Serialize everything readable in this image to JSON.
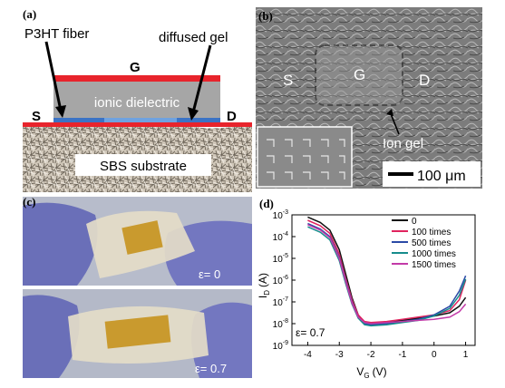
{
  "figure": {
    "panel_a": {
      "label": "(a)",
      "p3ht_label": "P3HT fiber",
      "gel_label": "diffused gel",
      "gate_label": "G",
      "dielectric_label": "ionic dielectric",
      "source_label": "S",
      "drain_label": "D",
      "substrate_label": "SBS substrate",
      "colors": {
        "electrode": "#e8242c",
        "dielectric": "#a6a6a6",
        "fiber": "#3b73c5"
      }
    },
    "panel_b": {
      "label": "(b)",
      "source_label": "S",
      "gate_label": "G",
      "drain_label": "D",
      "gel_label": "Ion gel",
      "scale_label": "100 μm"
    },
    "panel_c": {
      "label": "(c)",
      "strain_top": "ε= 0",
      "strain_bottom": "ε= 0.7"
    },
    "panel_d": {
      "label": "(d)",
      "annotation": "ε= 0.7"
    }
  },
  "chart_data": {
    "type": "line",
    "xlabel_main": "V",
    "xlabel_sub": "G",
    "xlabel_unit": "(V)",
    "ylabel_main": "I",
    "ylabel_sub": "D",
    "ylabel_unit": "(A)",
    "xlim": [
      -4.5,
      1.3
    ],
    "ylim_exp": [
      -9,
      -3
    ],
    "log_y": true,
    "x_ticks": [
      "-4",
      "-3",
      "-2",
      "-1",
      "0",
      "1"
    ],
    "x_tick_values": [
      -4,
      -3,
      -2,
      -1,
      0,
      1
    ],
    "y_tick_exponents": [
      -9,
      -8,
      -7,
      -6,
      -5,
      -4,
      -3
    ],
    "y_tick_base": "10",
    "legend_position": "top-right",
    "series": [
      {
        "name": "0",
        "color": "#111111",
        "x": [
          -4,
          -3.6,
          -3.3,
          -3.0,
          -2.8,
          -2.6,
          -2.4,
          -2.2,
          -2.0,
          -1.5,
          -1.0,
          -0.5,
          0,
          0.5,
          0.8,
          1.0
        ],
        "y_exp": [
          -3.1,
          -3.35,
          -3.7,
          -4.6,
          -5.7,
          -6.8,
          -7.6,
          -7.95,
          -8.0,
          -7.95,
          -7.85,
          -7.75,
          -7.65,
          -7.5,
          -7.2,
          -6.8
        ]
      },
      {
        "name": "100 times",
        "color": "#e0245e",
        "x": [
          -4,
          -3.6,
          -3.3,
          -3.0,
          -2.8,
          -2.6,
          -2.4,
          -2.2,
          -2.0,
          -1.5,
          -1.0,
          -0.5,
          0,
          0.5,
          0.8,
          1.0
        ],
        "y_exp": [
          -3.25,
          -3.5,
          -3.85,
          -4.8,
          -5.9,
          -6.9,
          -7.6,
          -7.9,
          -7.95,
          -7.9,
          -7.8,
          -7.7,
          -7.6,
          -7.4,
          -6.9,
          -6.0
        ]
      },
      {
        "name": "500 times",
        "color": "#2b4aa6",
        "x": [
          -4,
          -3.6,
          -3.3,
          -3.0,
          -2.8,
          -2.6,
          -2.4,
          -2.2,
          -2.0,
          -1.5,
          -1.0,
          -0.5,
          0,
          0.5,
          0.8,
          1.0
        ],
        "y_exp": [
          -3.4,
          -3.65,
          -4.0,
          -4.95,
          -6.0,
          -7.0,
          -7.7,
          -8.0,
          -8.05,
          -8.0,
          -7.9,
          -7.8,
          -7.6,
          -7.2,
          -6.5,
          -5.8
        ]
      },
      {
        "name": "1000 times",
        "color": "#168c8c",
        "x": [
          -4,
          -3.6,
          -3.3,
          -3.0,
          -2.8,
          -2.6,
          -2.4,
          -2.2,
          -2.0,
          -1.5,
          -1.0,
          -0.5,
          0,
          0.5,
          0.8,
          1.0
        ],
        "y_exp": [
          -3.55,
          -3.8,
          -4.15,
          -5.1,
          -6.15,
          -7.1,
          -7.75,
          -8.05,
          -8.1,
          -8.05,
          -7.95,
          -7.85,
          -7.65,
          -7.3,
          -6.7,
          -5.95
        ]
      },
      {
        "name": "1500 times",
        "color": "#c23aa8",
        "x": [
          -4,
          -3.6,
          -3.3,
          -3.0,
          -2.8,
          -2.6,
          -2.4,
          -2.2,
          -2.0,
          -1.5,
          -1.0,
          -0.5,
          0,
          0.5,
          0.8,
          1.0
        ],
        "y_exp": [
          -3.45,
          -3.7,
          -4.05,
          -5.0,
          -6.05,
          -7.05,
          -7.7,
          -7.95,
          -8.0,
          -7.95,
          -7.9,
          -7.85,
          -7.8,
          -7.7,
          -7.45,
          -7.1
        ]
      }
    ]
  }
}
